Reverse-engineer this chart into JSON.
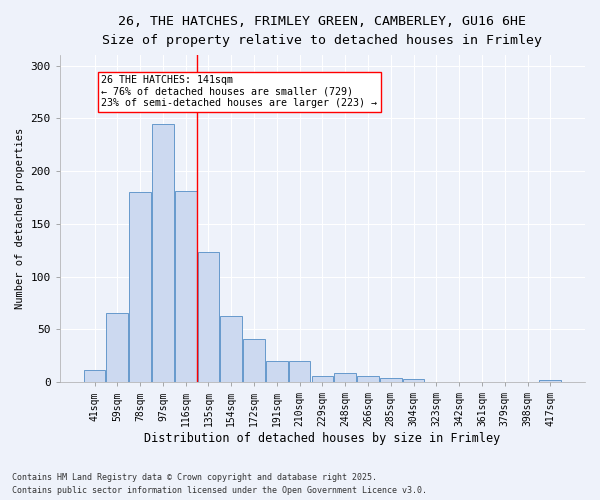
{
  "title_line1": "26, THE HATCHES, FRIMLEY GREEN, CAMBERLEY, GU16 6HE",
  "title_line2": "Size of property relative to detached houses in Frimley",
  "xlabel": "Distribution of detached houses by size in Frimley",
  "ylabel": "Number of detached properties",
  "categories": [
    "41sqm",
    "59sqm",
    "78sqm",
    "97sqm",
    "116sqm",
    "135sqm",
    "154sqm",
    "172sqm",
    "191sqm",
    "210sqm",
    "229sqm",
    "248sqm",
    "266sqm",
    "285sqm",
    "304sqm",
    "323sqm",
    "342sqm",
    "361sqm",
    "379sqm",
    "398sqm",
    "417sqm"
  ],
  "values": [
    12,
    66,
    180,
    245,
    181,
    123,
    63,
    41,
    20,
    20,
    6,
    9,
    6,
    4,
    3,
    0,
    0,
    0,
    0,
    0,
    2
  ],
  "bar_color": "#ccd9f0",
  "bar_edge_color": "#6699cc",
  "ylim": [
    0,
    310
  ],
  "yticks": [
    0,
    50,
    100,
    150,
    200,
    250,
    300
  ],
  "annotation_title": "26 THE HATCHES: 141sqm",
  "annotation_line2": "← 76% of detached houses are smaller (729)",
  "annotation_line3": "23% of semi-detached houses are larger (223) →",
  "vline_index": 4.5,
  "footnote1": "Contains HM Land Registry data © Crown copyright and database right 2025.",
  "footnote2": "Contains public sector information licensed under the Open Government Licence v3.0.",
  "background_color": "#eef2fa",
  "plot_bg_color": "#eef2fa",
  "grid_color": "#ffffff",
  "title_color": "#000000"
}
